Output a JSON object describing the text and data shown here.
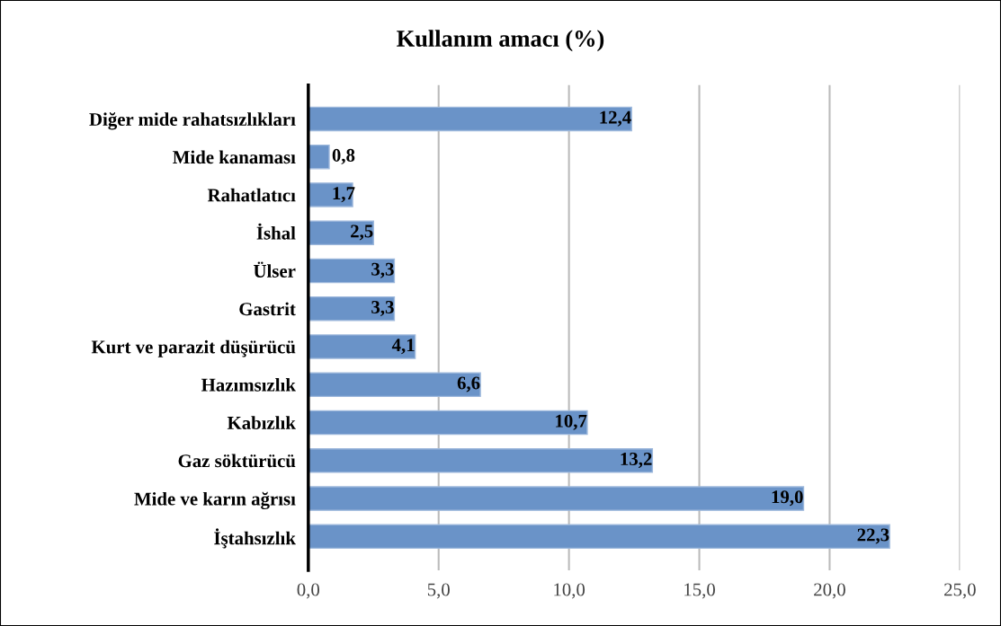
{
  "chart_data": {
    "type": "bar",
    "orientation": "horizontal",
    "title": "Kullanım amacı (%)",
    "categories": [
      "Diğer mide rahatsızlıkları",
      "Mide kanaması",
      "Rahatlatıcı",
      "İshal",
      "Ülser",
      "Gastrit",
      "Kurt ve parazit düşürücü",
      "Hazımsızlık",
      "Kabızlık",
      "Gaz söktürücü",
      "Mide ve karın ağrısı",
      "İştahsızlık"
    ],
    "values": [
      12.4,
      0.8,
      1.7,
      2.5,
      3.3,
      3.3,
      4.1,
      6.6,
      10.7,
      13.2,
      19.0,
      22.3
    ],
    "value_labels": [
      "12,4",
      "0,8",
      "1,7",
      "2,5",
      "3,3",
      "3,3",
      "4,1",
      "6,6",
      "10,7",
      "13,2",
      "19,0",
      "22,3"
    ],
    "color": "#6a93c8",
    "xlim": [
      0,
      25
    ],
    "xticks": [
      {
        "value": 0,
        "label": "0,0"
      },
      {
        "value": 5,
        "label": "5,0"
      },
      {
        "value": 10,
        "label": "10,0"
      },
      {
        "value": 15,
        "label": "15,0"
      },
      {
        "value": 20,
        "label": "20,0"
      },
      {
        "value": 25,
        "label": "25,0"
      }
    ],
    "grid": "x",
    "legend": false
  }
}
